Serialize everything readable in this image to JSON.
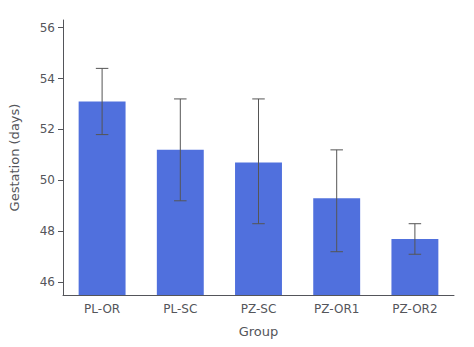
{
  "chart_data": {
    "type": "bar",
    "categories": [
      "PL-OR",
      "PL-SC",
      "PZ-SC",
      "PZ-OR1",
      "PZ-OR2"
    ],
    "values": [
      53.1,
      51.2,
      50.7,
      49.3,
      47.7
    ],
    "errors_upper": [
      1.3,
      2.0,
      2.5,
      1.9,
      0.6
    ],
    "errors_lower": [
      1.3,
      2.0,
      2.4,
      2.1,
      0.6
    ],
    "xlabel": "Group",
    "ylabel": "Gestation (days)",
    "ylim": [
      45.5,
      56.3
    ],
    "yticks": [
      46,
      48,
      50,
      52,
      54,
      56
    ],
    "grid": false
  }
}
